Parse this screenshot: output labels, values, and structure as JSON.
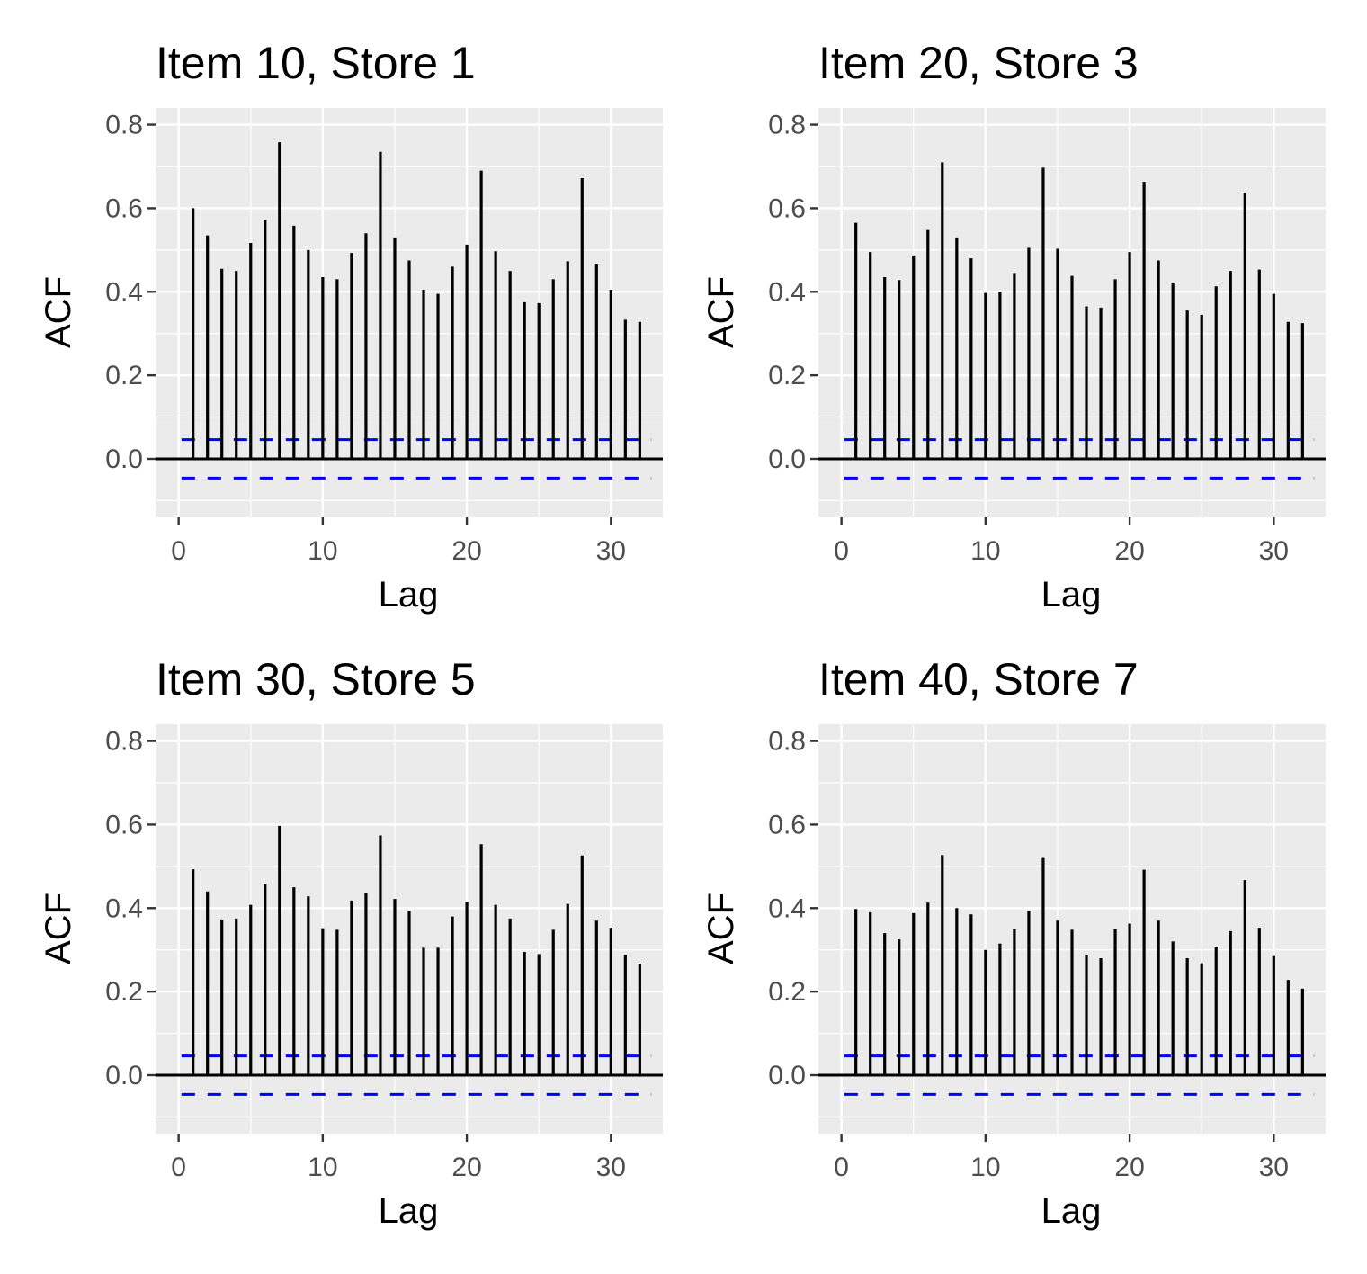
{
  "chart_data": [
    {
      "type": "bar",
      "title": "Item 10, Store 1",
      "xlabel": "Lag",
      "ylabel": "ACF",
      "x": [
        1,
        2,
        3,
        4,
        5,
        6,
        7,
        8,
        9,
        10,
        11,
        12,
        13,
        14,
        15,
        16,
        17,
        18,
        19,
        20,
        21,
        22,
        23,
        24,
        25,
        26,
        27,
        28,
        29,
        30,
        31,
        32
      ],
      "values": [
        0.6,
        0.535,
        0.455,
        0.45,
        0.517,
        0.573,
        0.758,
        0.558,
        0.5,
        0.435,
        0.43,
        0.493,
        0.54,
        0.735,
        0.53,
        0.475,
        0.405,
        0.395,
        0.46,
        0.513,
        0.69,
        0.497,
        0.45,
        0.375,
        0.373,
        0.43,
        0.473,
        0.672,
        0.467,
        0.405,
        0.333,
        0.328
      ],
      "confidence_bounds": [
        0.046,
        -0.046
      ],
      "xlim": [
        -1.6,
        33.6
      ],
      "ylim": [
        -0.14,
        0.84
      ],
      "xticks": [
        0,
        10,
        20,
        30
      ],
      "yticks": [
        0.0,
        0.2,
        0.4,
        0.6,
        0.8
      ],
      "ytick_labels": [
        "0.0",
        "0.2",
        "0.4",
        "0.6",
        "0.8"
      ],
      "grid": true,
      "colors": {
        "panel_bg": "#ebebeb",
        "bars": "#000000",
        "bounds": "#0000ff"
      }
    },
    {
      "type": "bar",
      "title": "Item 20, Store 3",
      "xlabel": "Lag",
      "ylabel": "ACF",
      "x": [
        1,
        2,
        3,
        4,
        5,
        6,
        7,
        8,
        9,
        10,
        11,
        12,
        13,
        14,
        15,
        16,
        17,
        18,
        19,
        20,
        21,
        22,
        23,
        24,
        25,
        26,
        27,
        28,
        29,
        30,
        31,
        32
      ],
      "values": [
        0.565,
        0.495,
        0.435,
        0.428,
        0.487,
        0.548,
        0.71,
        0.53,
        0.48,
        0.397,
        0.4,
        0.445,
        0.505,
        0.697,
        0.503,
        0.438,
        0.365,
        0.362,
        0.43,
        0.495,
        0.663,
        0.475,
        0.42,
        0.355,
        0.345,
        0.413,
        0.45,
        0.637,
        0.453,
        0.395,
        0.328,
        0.325
      ],
      "confidence_bounds": [
        0.046,
        -0.046
      ],
      "xlim": [
        -1.6,
        33.6
      ],
      "ylim": [
        -0.14,
        0.84
      ],
      "xticks": [
        0,
        10,
        20,
        30
      ],
      "yticks": [
        0.0,
        0.2,
        0.4,
        0.6,
        0.8
      ],
      "ytick_labels": [
        "0.0",
        "0.2",
        "0.4",
        "0.6",
        "0.8"
      ],
      "grid": true,
      "colors": {
        "panel_bg": "#ebebeb",
        "bars": "#000000",
        "bounds": "#0000ff"
      }
    },
    {
      "type": "bar",
      "title": "Item 30, Store 5",
      "xlabel": "Lag",
      "ylabel": "ACF",
      "x": [
        1,
        2,
        3,
        4,
        5,
        6,
        7,
        8,
        9,
        10,
        11,
        12,
        13,
        14,
        15,
        16,
        17,
        18,
        19,
        20,
        21,
        22,
        23,
        24,
        25,
        26,
        27,
        28,
        29,
        30,
        31,
        32
      ],
      "values": [
        0.493,
        0.44,
        0.373,
        0.375,
        0.408,
        0.458,
        0.597,
        0.45,
        0.428,
        0.352,
        0.348,
        0.418,
        0.437,
        0.574,
        0.422,
        0.393,
        0.305,
        0.305,
        0.38,
        0.415,
        0.553,
        0.408,
        0.375,
        0.295,
        0.29,
        0.348,
        0.41,
        0.526,
        0.37,
        0.353,
        0.288,
        0.267
      ],
      "confidence_bounds": [
        0.046,
        -0.046
      ],
      "xlim": [
        -1.6,
        33.6
      ],
      "ylim": [
        -0.14,
        0.84
      ],
      "xticks": [
        0,
        10,
        20,
        30
      ],
      "yticks": [
        0.0,
        0.2,
        0.4,
        0.6,
        0.8
      ],
      "ytick_labels": [
        "0.0",
        "0.2",
        "0.4",
        "0.6",
        "0.8"
      ],
      "grid": true,
      "colors": {
        "panel_bg": "#ebebeb",
        "bars": "#000000",
        "bounds": "#0000ff"
      }
    },
    {
      "type": "bar",
      "title": "Item 40, Store 7",
      "xlabel": "Lag",
      "ylabel": "ACF",
      "x": [
        1,
        2,
        3,
        4,
        5,
        6,
        7,
        8,
        9,
        10,
        11,
        12,
        13,
        14,
        15,
        16,
        17,
        18,
        19,
        20,
        21,
        22,
        23,
        24,
        25,
        26,
        27,
        28,
        29,
        30,
        31,
        32
      ],
      "values": [
        0.398,
        0.39,
        0.34,
        0.325,
        0.388,
        0.413,
        0.527,
        0.4,
        0.385,
        0.3,
        0.315,
        0.35,
        0.393,
        0.52,
        0.37,
        0.348,
        0.287,
        0.28,
        0.35,
        0.363,
        0.492,
        0.37,
        0.32,
        0.28,
        0.268,
        0.308,
        0.345,
        0.467,
        0.353,
        0.285,
        0.228,
        0.207
      ],
      "confidence_bounds": [
        0.046,
        -0.046
      ],
      "xlim": [
        -1.6,
        33.6
      ],
      "ylim": [
        -0.14,
        0.84
      ],
      "xticks": [
        0,
        10,
        20,
        30
      ],
      "yticks": [
        0.0,
        0.2,
        0.4,
        0.6,
        0.8
      ],
      "ytick_labels": [
        "0.0",
        "0.2",
        "0.4",
        "0.6",
        "0.8"
      ],
      "grid": true,
      "colors": {
        "panel_bg": "#ebebeb",
        "bars": "#000000",
        "bounds": "#0000ff"
      }
    }
  ]
}
